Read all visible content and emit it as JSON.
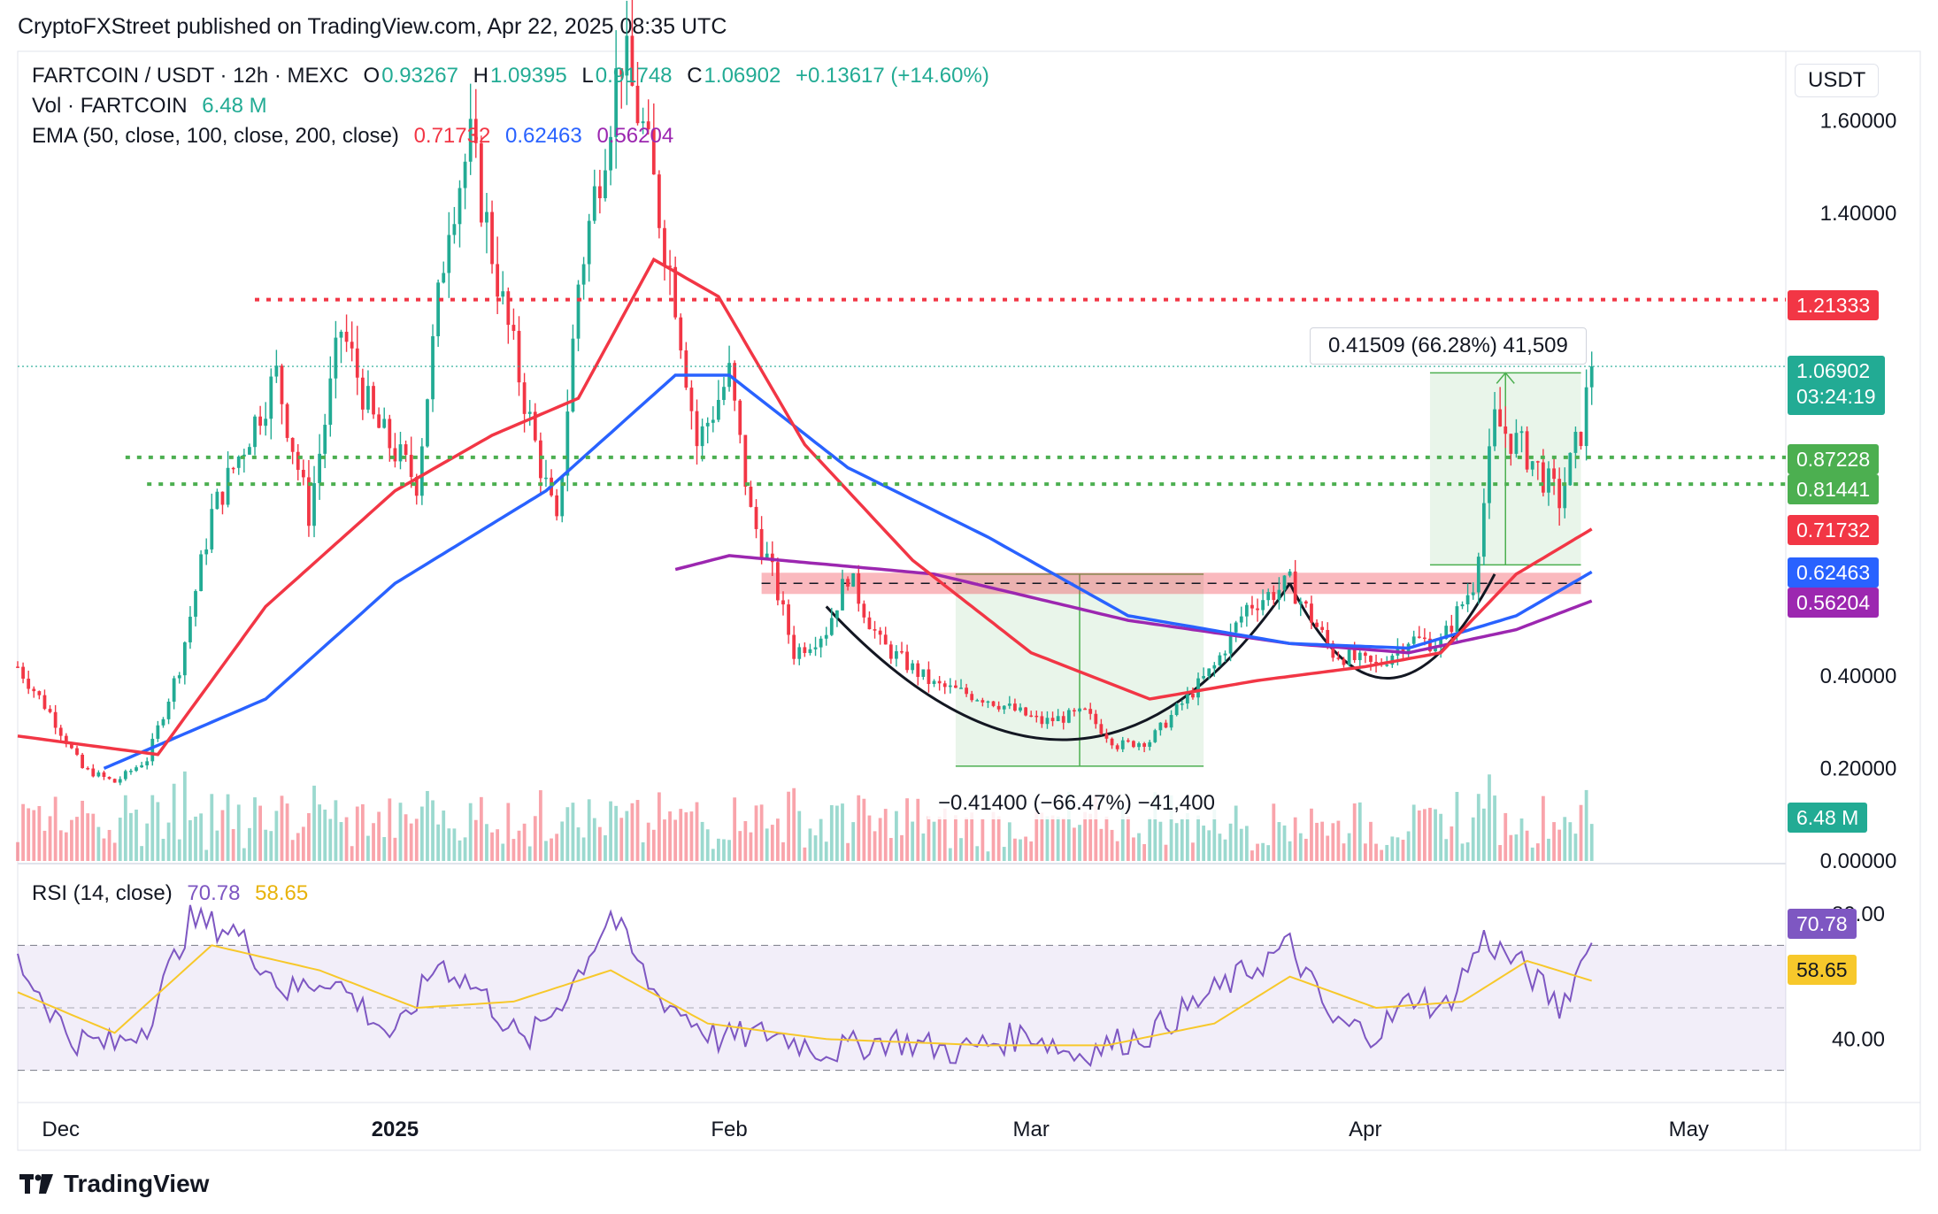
{
  "header": {
    "publisher_line": "CryptoFXStreet published on TradingView.com, Apr 22, 2025 08:35 UTC"
  },
  "legend": {
    "symbol": "FARTCOIN / USDT · 12h · MEXC",
    "o_label": "O",
    "o_value": "0.93267",
    "h_label": "H",
    "h_value": "1.09395",
    "l_label": "L",
    "l_value": "0.91748",
    "c_label": "C",
    "c_value": "1.06902",
    "change": "+0.13617 (+14.60%)",
    "vol_label": "Vol · FARTCOIN",
    "vol_value": "6.48 M",
    "ema_label": "EMA (50, close, 100, close, 200, close)",
    "ema50": "0.71732",
    "ema100": "0.62463",
    "ema200": "0.56204",
    "rsi_label": "RSI (14, close)",
    "rsi_value": "70.78",
    "rsi_ma": "58.65"
  },
  "price_axis": {
    "currency": "USDT",
    "ticks": [
      "1.60000",
      "1.40000",
      "0.40000",
      "0.20000",
      "0.00000"
    ],
    "tags": {
      "resistance": "1.21333",
      "last_price": "1.06902",
      "countdown": "03:24:19",
      "support_upper": "0.87228",
      "support_lower": "0.81441",
      "ema50": "0.71732",
      "ema100": "0.62463",
      "ema200": "0.56204",
      "volume": "6.48 M"
    }
  },
  "rsi_axis": {
    "ticks": [
      "80.00",
      "40.00"
    ],
    "tags": {
      "rsi": "70.78",
      "rsi_ma": "58.65"
    }
  },
  "time_axis": {
    "labels": [
      "Dec",
      "2025",
      "Feb",
      "Mar",
      "Apr",
      "May"
    ]
  },
  "measures": {
    "up": "0.41509 (66.28%) 41,509",
    "down": "−0.41400 (−66.47%) −41,400"
  },
  "footer": {
    "brand": "TradingView"
  },
  "colors": {
    "up": "#22ab94",
    "down": "#f23645",
    "ema50": "#f23645",
    "ema100": "#2962ff",
    "ema200": "#9c27b0",
    "rsi": "#7e57c2",
    "rsi_ma": "#f7c82b",
    "support": "#4caf50"
  },
  "chart_data": {
    "type": "candlestick",
    "timeframe": "12h",
    "x_range": [
      "2024-11-27",
      "2025-05-10"
    ],
    "ylim": [
      0.0,
      1.75
    ],
    "last": 1.06902,
    "lines": {
      "resistance": 1.21333,
      "support_upper": 0.87228,
      "support_lower": 0.81441,
      "neckline": 0.6
    },
    "x_labels": [
      {
        "label": "Dec",
        "date": "2024-12-01"
      },
      {
        "label": "2025",
        "date": "2025-01-01"
      },
      {
        "label": "Feb",
        "date": "2025-02-01"
      },
      {
        "label": "Mar",
        "date": "2025-03-01"
      },
      {
        "label": "Apr",
        "date": "2025-04-01"
      },
      {
        "label": "May",
        "date": "2025-05-01"
      }
    ],
    "price_anchors": [
      [
        "2024-11-27",
        0.42
      ],
      [
        "2024-11-30",
        0.32
      ],
      [
        "2024-12-03",
        0.2
      ],
      [
        "2024-12-06",
        0.17
      ],
      [
        "2024-12-09",
        0.22
      ],
      [
        "2024-12-12",
        0.42
      ],
      [
        "2024-12-15",
        0.75
      ],
      [
        "2024-12-18",
        0.9
      ],
      [
        "2024-12-21",
        1.05
      ],
      [
        "2024-12-24",
        0.75
      ],
      [
        "2024-12-27",
        1.15
      ],
      [
        "2024-12-30",
        0.95
      ],
      [
        "2025-01-03",
        0.82
      ],
      [
        "2025-01-06",
        1.4
      ],
      [
        "2025-01-08",
        1.55
      ],
      [
        "2025-01-11",
        1.2
      ],
      [
        "2025-01-14",
        0.9
      ],
      [
        "2025-01-16",
        0.72
      ],
      [
        "2025-01-18",
        1.25
      ],
      [
        "2025-01-20",
        1.5
      ],
      [
        "2025-01-22",
        1.75
      ],
      [
        "2025-01-24",
        1.58
      ],
      [
        "2025-01-27",
        1.22
      ],
      [
        "2025-01-29",
        0.9
      ],
      [
        "2025-02-01",
        1.05
      ],
      [
        "2025-02-03",
        0.75
      ],
      [
        "2025-02-05",
        0.62
      ],
      [
        "2025-02-07",
        0.45
      ],
      [
        "2025-02-10",
        0.5
      ],
      [
        "2025-02-12",
        0.62
      ],
      [
        "2025-02-15",
        0.47
      ],
      [
        "2025-02-20",
        0.38
      ],
      [
        "2025-02-25",
        0.35
      ],
      [
        "2025-03-02",
        0.3
      ],
      [
        "2025-03-06",
        0.32
      ],
      [
        "2025-03-09",
        0.25
      ],
      [
        "2025-03-12",
        0.26
      ],
      [
        "2025-03-15",
        0.34
      ],
      [
        "2025-03-18",
        0.42
      ],
      [
        "2025-03-21",
        0.55
      ],
      [
        "2025-03-25",
        0.6
      ],
      [
        "2025-03-29",
        0.45
      ],
      [
        "2025-04-02",
        0.42
      ],
      [
        "2025-04-05",
        0.48
      ],
      [
        "2025-04-08",
        0.47
      ],
      [
        "2025-04-11",
        0.6
      ],
      [
        "2025-04-13",
        0.95
      ],
      [
        "2025-04-16",
        0.88
      ],
      [
        "2025-04-19",
        0.78
      ],
      [
        "2025-04-21",
        0.93
      ],
      [
        "2025-04-22",
        1.06902
      ]
    ],
    "ema50_anchors": [
      [
        "2024-11-27",
        0.27
      ],
      [
        "2024-12-10",
        0.23
      ],
      [
        "2024-12-20",
        0.55
      ],
      [
        "2025-01-01",
        0.8
      ],
      [
        "2025-01-10",
        0.92
      ],
      [
        "2025-01-18",
        1.0
      ],
      [
        "2025-01-25",
        1.3
      ],
      [
        "2025-01-31",
        1.22
      ],
      [
        "2025-02-08",
        0.9
      ],
      [
        "2025-02-18",
        0.65
      ],
      [
        "2025-03-01",
        0.45
      ],
      [
        "2025-03-12",
        0.35
      ],
      [
        "2025-03-22",
        0.39
      ],
      [
        "2025-04-01",
        0.42
      ],
      [
        "2025-04-08",
        0.45
      ],
      [
        "2025-04-15",
        0.62
      ],
      [
        "2025-04-22",
        0.71732
      ]
    ],
    "ema100_anchors": [
      [
        "2024-12-05",
        0.2
      ],
      [
        "2024-12-20",
        0.35
      ],
      [
        "2025-01-01",
        0.6
      ],
      [
        "2025-01-15",
        0.8
      ],
      [
        "2025-01-27",
        1.05
      ],
      [
        "2025-02-01",
        1.05
      ],
      [
        "2025-02-12",
        0.85
      ],
      [
        "2025-02-25",
        0.7
      ],
      [
        "2025-03-10",
        0.53
      ],
      [
        "2025-03-25",
        0.47
      ],
      [
        "2025-04-05",
        0.46
      ],
      [
        "2025-04-15",
        0.53
      ],
      [
        "2025-04-22",
        0.62463
      ]
    ],
    "ema200_anchors": [
      [
        "2025-01-27",
        0.63
      ],
      [
        "2025-02-01",
        0.66
      ],
      [
        "2025-02-20",
        0.62
      ],
      [
        "2025-03-10",
        0.52
      ],
      [
        "2025-03-25",
        0.47
      ],
      [
        "2025-04-05",
        0.45
      ],
      [
        "2025-04-15",
        0.5
      ],
      [
        "2025-04-22",
        0.56204
      ]
    ],
    "rsi_anchors": [
      [
        "2024-11-27",
        65
      ],
      [
        "2024-12-02",
        40
      ],
      [
        "2024-12-06",
        38
      ],
      [
        "2024-12-09",
        45
      ],
      [
        "2024-12-13",
        78
      ],
      [
        "2024-12-17",
        75
      ],
      [
        "2024-12-22",
        55
      ],
      [
        "2024-12-26",
        60
      ],
      [
        "2025-01-01",
        40
      ],
      [
        "2025-01-05",
        65
      ],
      [
        "2025-01-09",
        55
      ],
      [
        "2025-01-13",
        38
      ],
      [
        "2025-01-17",
        55
      ],
      [
        "2025-01-21",
        80
      ],
      [
        "2025-01-25",
        55
      ],
      [
        "2025-01-31",
        40
      ],
      [
        "2025-02-05",
        42
      ],
      [
        "2025-02-10",
        36
      ],
      [
        "2025-02-16",
        40
      ],
      [
        "2025-02-22",
        36
      ],
      [
        "2025-03-01",
        42
      ],
      [
        "2025-03-05",
        35
      ],
      [
        "2025-03-12",
        42
      ],
      [
        "2025-03-18",
        55
      ],
      [
        "2025-03-25",
        70
      ],
      [
        "2025-03-29",
        45
      ],
      [
        "2025-04-02",
        42
      ],
      [
        "2025-04-06",
        55
      ],
      [
        "2025-04-08",
        48
      ],
      [
        "2025-04-12",
        72
      ],
      [
        "2025-04-16",
        62
      ],
      [
        "2025-04-19",
        50
      ],
      [
        "2025-04-22",
        70.78
      ]
    ],
    "rsi_ma_anchors": [
      [
        "2024-11-27",
        55
      ],
      [
        "2024-12-06",
        42
      ],
      [
        "2024-12-15",
        70
      ],
      [
        "2024-12-25",
        62
      ],
      [
        "2025-01-03",
        50
      ],
      [
        "2025-01-12",
        52
      ],
      [
        "2025-01-21",
        62
      ],
      [
        "2025-01-30",
        45
      ],
      [
        "2025-02-10",
        40
      ],
      [
        "2025-02-25",
        38
      ],
      [
        "2025-03-08",
        38
      ],
      [
        "2025-03-18",
        45
      ],
      [
        "2025-03-25",
        60
      ],
      [
        "2025-04-02",
        50
      ],
      [
        "2025-04-10",
        52
      ],
      [
        "2025-04-16",
        65
      ],
      [
        "2025-04-22",
        58.65
      ]
    ],
    "rsi_ylim": [
      20,
      95
    ],
    "rsi_bands": [
      70,
      50,
      30
    ],
    "measure_up": {
      "from_date": "2025-04-07",
      "to_date": "2025-04-21",
      "from_price": 0.64,
      "to_price": 1.055
    },
    "measure_down": {
      "from_date": "2025-02-22",
      "to_date": "2025-03-17",
      "from_price": 0.62,
      "to_price": 0.205
    }
  }
}
